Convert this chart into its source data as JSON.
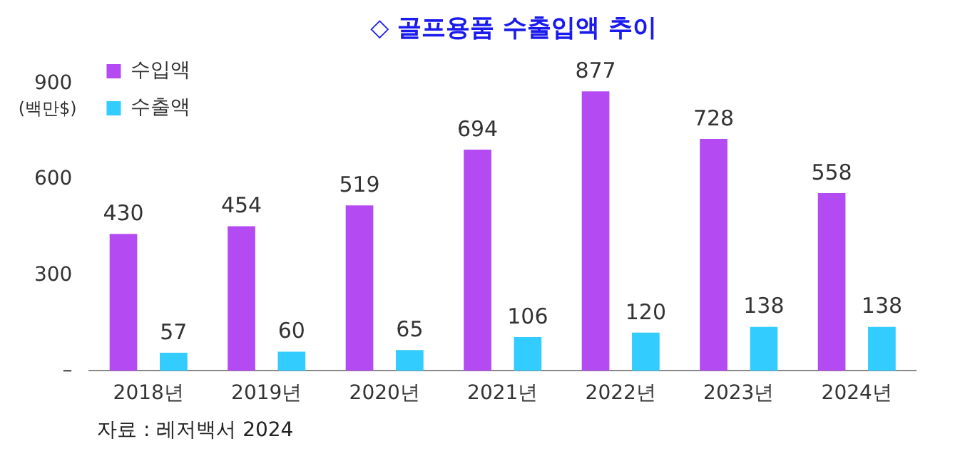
{
  "chart_data": {
    "type": "bar",
    "title": "◇ 골프용품 수출입액 추이",
    "ylabel": "(백만$)",
    "categories": [
      "2018년",
      "2019년",
      "2020년",
      "2021년",
      "2022년",
      "2023년",
      "2024년"
    ],
    "series": [
      {
        "name": "수입액",
        "color": "#b44af2",
        "values": [
          430,
          454,
          519,
          694,
          877,
          728,
          558
        ]
      },
      {
        "name": "수출액",
        "color": "#33ccff",
        "values": [
          57,
          60,
          65,
          106,
          120,
          138,
          138
        ]
      }
    ],
    "ylim": [
      0,
      900
    ],
    "yticks": [
      {
        "value": 0,
        "label": "–"
      },
      300,
      600,
      900
    ],
    "grid": false,
    "legend": "top left",
    "data_labels": true,
    "annotations": [
      "자료 : 레저백서 2024"
    ]
  }
}
